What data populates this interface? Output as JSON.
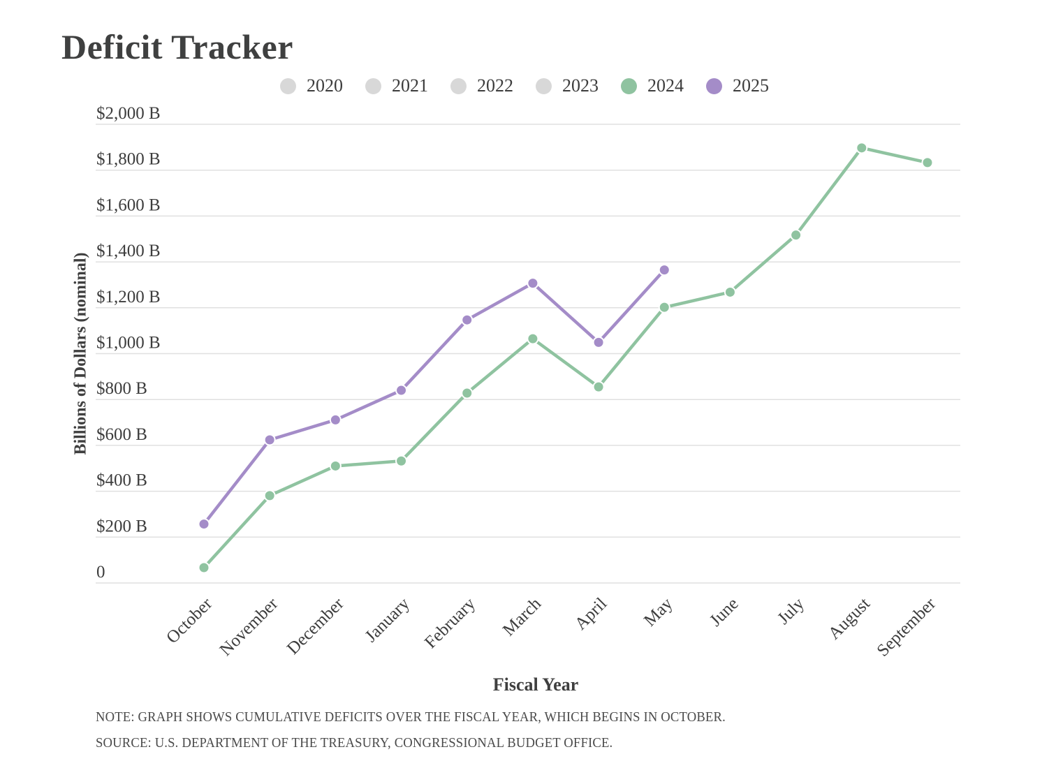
{
  "title": "Deficit Tracker",
  "legend": {
    "items": [
      {
        "label": "2020",
        "color": "#d8d8d8",
        "active": false
      },
      {
        "label": "2021",
        "color": "#d8d8d8",
        "active": false
      },
      {
        "label": "2022",
        "color": "#d8d8d8",
        "active": false
      },
      {
        "label": "2023",
        "color": "#d8d8d8",
        "active": false
      },
      {
        "label": "2024",
        "color": "#8fc3a0",
        "active": true
      },
      {
        "label": "2025",
        "color": "#a48cc8",
        "active": true
      }
    ]
  },
  "chart_data": {
    "type": "line",
    "x_categories": [
      "October",
      "November",
      "December",
      "January",
      "February",
      "March",
      "April",
      "May",
      "June",
      "July",
      "August",
      "September"
    ],
    "series": [
      {
        "name": "2024",
        "color": "#8fc3a0",
        "values": [
          67,
          381,
          510,
          532,
          828,
          1065,
          855,
          1202,
          1268,
          1517,
          1897,
          1833
        ]
      },
      {
        "name": "2025",
        "color": "#a48cc8",
        "values": [
          257,
          624,
          711,
          840,
          1147,
          1307,
          1049,
          1365,
          null,
          null,
          null,
          null
        ]
      }
    ],
    "title": "Deficit Tracker",
    "xlabel": "Fiscal Year",
    "ylabel": "Billions of Dollars (nominal)",
    "ylim": [
      0,
      2000
    ],
    "ytick_step": 200,
    "ytick_labels": [
      "0",
      "$200 B",
      "$400 B",
      "$600 B",
      "$800 B",
      "$1,000 B",
      "$1,200 B",
      "$1,400 B",
      "$1,600 B",
      "$1,800 B",
      "$2,000 B"
    ],
    "grid": true,
    "grid_color": "#e0e0e0",
    "legend_position": "top"
  },
  "footnotes": {
    "note": "NOTE: GRAPH SHOWS CUMULATIVE DEFICITS OVER THE FISCAL YEAR, WHICH BEGINS IN OCTOBER.",
    "source": "SOURCE: U.S. DEPARTMENT OF THE TREASURY, CONGRESSIONAL BUDGET OFFICE."
  }
}
